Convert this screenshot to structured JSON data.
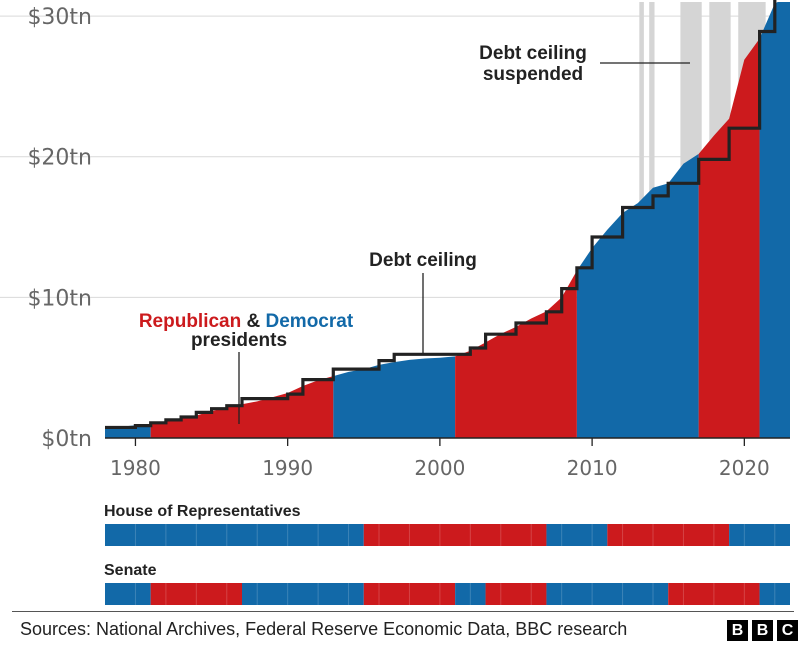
{
  "chart_data": {
    "type": "area",
    "x_range": [
      1978,
      2023
    ],
    "y_range": [
      0,
      31
    ],
    "y_unit": "trillion dollars",
    "y_ticks": [
      {
        "value": 0,
        "label": "$0tn"
      },
      {
        "value": 10,
        "label": "$10tn"
      },
      {
        "value": 20,
        "label": "$20tn"
      },
      {
        "value": 30,
        "label": "$30tn"
      }
    ],
    "x_ticks": [
      {
        "value": 1980,
        "label": "1980"
      },
      {
        "value": 1990,
        "label": "1990"
      },
      {
        "value": 2000,
        "label": "2000"
      },
      {
        "value": 2010,
        "label": "2010"
      },
      {
        "value": 2020,
        "label": "2020"
      }
    ],
    "series": [
      {
        "name": "Debt",
        "values": [
          [
            1978,
            0.7
          ],
          [
            1979,
            0.8
          ],
          [
            1980,
            0.9
          ],
          [
            1981,
            1.0
          ],
          [
            1982,
            1.15
          ],
          [
            1983,
            1.4
          ],
          [
            1984,
            1.6
          ],
          [
            1985,
            1.9
          ],
          [
            1986,
            2.2
          ],
          [
            1987,
            2.4
          ],
          [
            1988,
            2.6
          ],
          [
            1989,
            2.9
          ],
          [
            1990,
            3.2
          ],
          [
            1991,
            3.7
          ],
          [
            1992,
            4.1
          ],
          [
            1993,
            4.4
          ],
          [
            1994,
            4.7
          ],
          [
            1995,
            4.9
          ],
          [
            1996,
            5.2
          ],
          [
            1997,
            5.4
          ],
          [
            1998,
            5.55
          ],
          [
            1999,
            5.65
          ],
          [
            2000,
            5.7
          ],
          [
            2001,
            5.8
          ],
          [
            2002,
            6.2
          ],
          [
            2003,
            6.8
          ],
          [
            2004,
            7.4
          ],
          [
            2005,
            7.9
          ],
          [
            2006,
            8.5
          ],
          [
            2007,
            9.0
          ],
          [
            2008,
            10.0
          ],
          [
            2009,
            11.9
          ],
          [
            2010,
            13.5
          ],
          [
            2011,
            14.8
          ],
          [
            2012,
            16.0
          ],
          [
            2013,
            16.7
          ],
          [
            2014,
            17.8
          ],
          [
            2015,
            18.1
          ],
          [
            2016,
            19.5
          ],
          [
            2017,
            20.2
          ],
          [
            2018,
            21.5
          ],
          [
            2019,
            22.7
          ],
          [
            2020,
            26.9
          ],
          [
            2021,
            28.4
          ],
          [
            2022,
            30.9
          ],
          [
            2023,
            31.4
          ]
        ]
      },
      {
        "name": "Debt ceiling",
        "steps": [
          [
            1978,
            0.75
          ],
          [
            1980,
            0.88
          ],
          [
            1981,
            1.08
          ],
          [
            1982,
            1.29
          ],
          [
            1983,
            1.49
          ],
          [
            1984,
            1.82
          ],
          [
            1985,
            2.08
          ],
          [
            1986,
            2.3
          ],
          [
            1987,
            2.8
          ],
          [
            1990,
            3.12
          ],
          [
            1991,
            4.15
          ],
          [
            1993,
            4.9
          ],
          [
            1996,
            5.5
          ],
          [
            1997,
            5.95
          ],
          [
            2002,
            6.4
          ],
          [
            2003,
            7.38
          ],
          [
            2005,
            8.18
          ],
          [
            2007,
            8.97
          ],
          [
            2008,
            10.62
          ],
          [
            2009,
            12.1
          ],
          [
            2010,
            14.29
          ],
          [
            2012,
            16.39
          ],
          [
            2014,
            17.21
          ],
          [
            2015,
            18.11
          ],
          [
            2017,
            19.81
          ],
          [
            2019,
            22.03
          ],
          [
            2021,
            28.9
          ],
          [
            2022,
            31.38
          ],
          [
            2023,
            31.38
          ]
        ]
      }
    ],
    "presidential_party_periods": [
      {
        "from": 1978,
        "to": 1981,
        "party": "Democrat"
      },
      {
        "from": 1981,
        "to": 1993,
        "party": "Republican"
      },
      {
        "from": 1993,
        "to": 2001,
        "party": "Democrat"
      },
      {
        "from": 2001,
        "to": 2009,
        "party": "Republican"
      },
      {
        "from": 2009,
        "to": 2017,
        "party": "Democrat"
      },
      {
        "from": 2017,
        "to": 2021,
        "party": "Republican"
      },
      {
        "from": 2021,
        "to": 2023,
        "party": "Democrat"
      }
    ],
    "suspension_periods": [
      [
        2013.1,
        2013.4
      ],
      [
        2013.75,
        2014.1
      ],
      [
        2015.8,
        2017.2
      ],
      [
        2017.7,
        2019.1
      ],
      [
        2019.6,
        2021.4
      ]
    ],
    "colors": {
      "Republican": "#cc1a1d",
      "Democrat": "#1269a8",
      "suspension": "#d5d5d5",
      "ceiling": "#222222"
    },
    "grid": true
  },
  "annotations": {
    "suspended": [
      "Debt ceiling",
      "suspended"
    ],
    "ceiling": "Debt ceiling",
    "republican": "Republican",
    "amp": " & ",
    "democrat": "Democrat",
    "presidents": "presidents"
  },
  "house": {
    "title": "House of Representatives",
    "periods": [
      {
        "from": 1978,
        "to": 1995,
        "party": "Democrat"
      },
      {
        "from": 1995,
        "to": 2007,
        "party": "Republican"
      },
      {
        "from": 2007,
        "to": 2011,
        "party": "Democrat"
      },
      {
        "from": 2011,
        "to": 2019,
        "party": "Republican"
      },
      {
        "from": 2019,
        "to": 2023,
        "party": "Democrat"
      }
    ]
  },
  "senate": {
    "title": "Senate",
    "periods": [
      {
        "from": 1978,
        "to": 1981,
        "party": "Democrat"
      },
      {
        "from": 1981,
        "to": 1987,
        "party": "Republican"
      },
      {
        "from": 1987,
        "to": 1995,
        "party": "Democrat"
      },
      {
        "from": 1995,
        "to": 2001,
        "party": "Republican"
      },
      {
        "from": 2001,
        "to": 2003,
        "party": "Democrat"
      },
      {
        "from": 2003,
        "to": 2007,
        "party": "Republican"
      },
      {
        "from": 2007,
        "to": 2015,
        "party": "Democrat"
      },
      {
        "from": 2015,
        "to": 2021,
        "party": "Republican"
      },
      {
        "from": 2021,
        "to": 2023,
        "party": "Democrat"
      }
    ]
  },
  "footer": {
    "source": "Sources: National Archives, Federal Reserve Economic Data, BBC research",
    "logo": [
      "B",
      "B",
      "C"
    ]
  }
}
